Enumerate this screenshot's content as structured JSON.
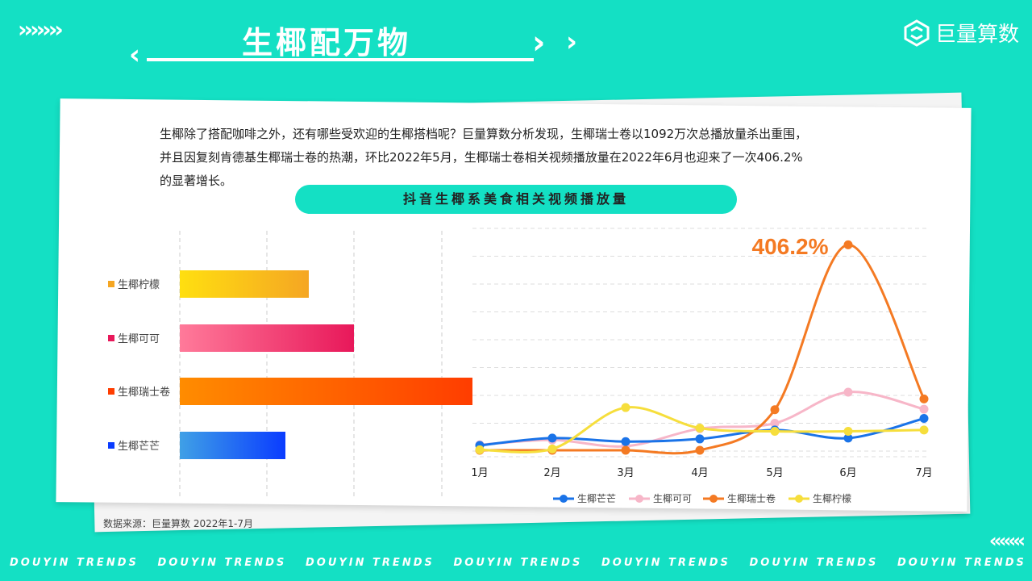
{
  "header": {
    "title": "生椰配万物",
    "top_chevrons": "›››››››",
    "logo_text": "巨量算数"
  },
  "intro": {
    "line1": "生椰除了搭配咖啡之外，还有哪些受欢迎的生椰搭档呢？巨量算数分析发现，生椰瑞士卷以1092万次总播放量杀出重围，",
    "line2": "并且因复刻肯德基生椰瑞士卷的热潮，环比2022年5月，生椰瑞士卷相关视频播放量在2022年6月也迎来了一次406.2%",
    "line3": "的显著增长。"
  },
  "chart_title": "抖音生椰系美食相关视频播放量",
  "source": "数据来源：巨量算数 2022年1-7月",
  "footer": {
    "chevrons": "‹‹‹‹‹‹‹",
    "tagline": "DOUYIN TRENDS"
  },
  "chart_data": [
    {
      "type": "bar",
      "orientation": "horizontal",
      "categories": [
        "生椰柠檬",
        "生椰可可",
        "生椰瑞士卷",
        "生椰芒芒"
      ],
      "values": [
        160,
        216,
        363,
        131
      ],
      "colors": [
        [
          "#ffdf10",
          "#f5a623"
        ],
        [
          "#ff7a9a",
          "#e8185a"
        ],
        [
          "#ff8c00",
          "#ff3d00"
        ],
        [
          "#3fa0e6",
          "#0a3cff"
        ]
      ]
    },
    {
      "type": "line",
      "categories": [
        "1月",
        "2月",
        "3月",
        "4月",
        "5月",
        "6月",
        "7月"
      ],
      "series": [
        {
          "name": "生椰芒芒",
          "color": "#1a73e8",
          "values": [
            18,
            45,
            32,
            42,
            75,
            45,
            118
          ]
        },
        {
          "name": "生椰可可",
          "color": "#f7b6c8",
          "values": [
            20,
            38,
            15,
            80,
            100,
            215,
            152
          ]
        },
        {
          "name": "生椰瑞士卷",
          "color": "#f47a23",
          "values": [
            0,
            0,
            0,
            0,
            150,
            760,
            190
          ]
        },
        {
          "name": "生椰柠檬",
          "color": "#f6de3c",
          "values": [
            2,
            5,
            158,
            82,
            70,
            70,
            75
          ]
        }
      ],
      "annotation": "406.2%",
      "ylim": [
        0,
        800
      ]
    }
  ]
}
